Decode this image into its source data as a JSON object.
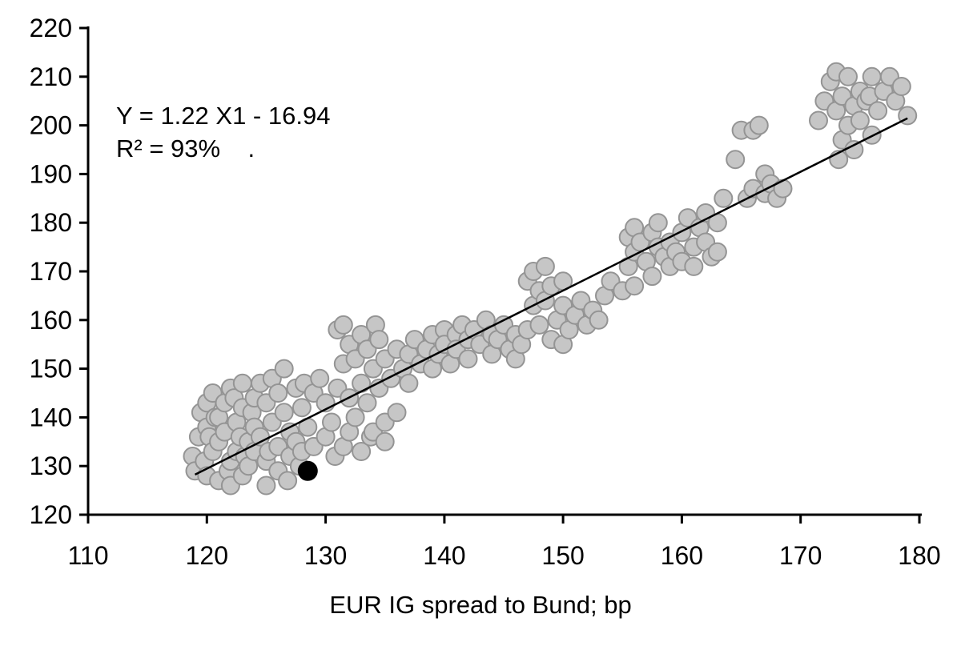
{
  "chart_data": {
    "type": "scatter",
    "title": "",
    "xlabel": "EUR IG spread to Bund; bp",
    "ylabel": "",
    "xlim": [
      110,
      180
    ],
    "ylim": [
      120,
      220
    ],
    "xticks": [
      110,
      120,
      130,
      140,
      150,
      160,
      170,
      180
    ],
    "yticks": [
      120,
      130,
      140,
      150,
      160,
      170,
      180,
      190,
      200,
      210,
      220
    ],
    "grid": false,
    "legend": "none",
    "annotation": {
      "line1": "Y = 1.22 X1 - 16.94",
      "line2": "R² = 93%    ."
    },
    "regression": {
      "slope": 1.22,
      "intercept": -16.94,
      "x_start": 119,
      "x_end": 179,
      "color": "#000000",
      "width": 2.5
    },
    "series": [
      {
        "name": "observations",
        "marker": "circle",
        "fill": "#c6c6c6",
        "stroke": "#949494",
        "radius": 11,
        "points": [
          [
            118.8,
            132
          ],
          [
            119,
            129
          ],
          [
            119.3,
            136
          ],
          [
            119.5,
            141
          ],
          [
            119.8,
            131
          ],
          [
            120,
            138
          ],
          [
            120,
            143
          ],
          [
            120,
            128
          ],
          [
            120.2,
            136
          ],
          [
            120.5,
            133
          ],
          [
            120.5,
            145
          ],
          [
            120.7,
            140
          ],
          [
            121,
            140
          ],
          [
            121,
            135
          ],
          [
            121,
            127
          ],
          [
            121.5,
            143
          ],
          [
            121.5,
            137
          ],
          [
            121.8,
            129
          ],
          [
            122,
            146
          ],
          [
            122,
            131
          ],
          [
            122,
            126
          ],
          [
            122.3,
            144
          ],
          [
            122.5,
            139
          ],
          [
            122.5,
            133
          ],
          [
            122.8,
            136
          ],
          [
            123,
            147
          ],
          [
            123,
            142
          ],
          [
            123,
            128
          ],
          [
            123.2,
            132
          ],
          [
            123.5,
            135
          ],
          [
            123.5,
            130
          ],
          [
            123.8,
            141
          ],
          [
            124,
            144
          ],
          [
            124,
            138
          ],
          [
            124,
            133
          ],
          [
            124.5,
            147
          ],
          [
            124.5,
            136
          ],
          [
            125,
            143
          ],
          [
            125,
            131
          ],
          [
            125,
            126
          ],
          [
            125.2,
            133
          ],
          [
            125.5,
            148
          ],
          [
            125.5,
            139
          ],
          [
            126,
            145
          ],
          [
            126,
            134
          ],
          [
            126,
            129
          ],
          [
            126.5,
            150
          ],
          [
            126.5,
            141
          ],
          [
            126.8,
            127
          ],
          [
            127,
            137
          ],
          [
            127,
            132
          ],
          [
            127.5,
            146
          ],
          [
            127.5,
            135
          ],
          [
            127.8,
            130
          ],
          [
            128,
            142
          ],
          [
            128,
            133
          ],
          [
            128.2,
            147
          ],
          [
            128.5,
            138
          ],
          [
            129,
            145
          ],
          [
            129,
            134
          ],
          [
            129.5,
            148
          ],
          [
            130,
            143
          ],
          [
            130,
            136
          ],
          [
            130.5,
            139
          ],
          [
            130.8,
            132
          ],
          [
            131,
            158
          ],
          [
            131,
            146
          ],
          [
            131.5,
            159
          ],
          [
            131.5,
            151
          ],
          [
            131.5,
            134
          ],
          [
            132,
            155
          ],
          [
            132,
            144
          ],
          [
            132,
            137
          ],
          [
            132.5,
            152
          ],
          [
            132.5,
            140
          ],
          [
            133,
            157
          ],
          [
            133,
            147
          ],
          [
            133,
            133
          ],
          [
            133.5,
            154
          ],
          [
            133.5,
            143
          ],
          [
            133.8,
            136
          ],
          [
            134,
            150
          ],
          [
            134,
            137
          ],
          [
            134.2,
            159
          ],
          [
            134.5,
            156
          ],
          [
            134.5,
            146
          ],
          [
            135,
            152
          ],
          [
            135,
            139
          ],
          [
            135,
            135
          ],
          [
            135.5,
            148
          ],
          [
            136,
            154
          ],
          [
            136,
            141
          ],
          [
            136.5,
            150
          ],
          [
            137,
            153
          ],
          [
            137,
            147
          ],
          [
            137.5,
            156
          ],
          [
            138,
            151
          ],
          [
            138.5,
            154
          ],
          [
            139,
            157
          ],
          [
            139,
            150
          ],
          [
            139.5,
            153
          ],
          [
            140,
            158
          ],
          [
            140,
            155
          ],
          [
            140.5,
            151
          ],
          [
            141,
            157
          ],
          [
            141,
            154
          ],
          [
            141.5,
            159
          ],
          [
            142,
            156
          ],
          [
            142,
            152
          ],
          [
            142.5,
            158
          ],
          [
            143,
            155
          ],
          [
            143.5,
            160
          ],
          [
            144,
            157
          ],
          [
            144,
            153
          ],
          [
            144.5,
            156
          ],
          [
            145,
            159
          ],
          [
            145.5,
            154
          ],
          [
            146,
            157
          ],
          [
            146,
            152
          ],
          [
            146.5,
            155
          ],
          [
            147,
            158
          ],
          [
            147,
            168
          ],
          [
            147.5,
            170
          ],
          [
            147.5,
            163
          ],
          [
            148,
            166
          ],
          [
            148,
            159
          ],
          [
            148.5,
            171
          ],
          [
            148.5,
            164
          ],
          [
            149,
            167
          ],
          [
            149,
            156
          ],
          [
            149.5,
            160
          ],
          [
            150,
            168
          ],
          [
            150,
            163
          ],
          [
            150,
            155
          ],
          [
            150.5,
            158
          ],
          [
            151,
            161
          ],
          [
            151.5,
            164
          ],
          [
            152,
            159
          ],
          [
            152.5,
            162
          ],
          [
            153,
            160
          ],
          [
            153.5,
            165
          ],
          [
            154,
            168
          ],
          [
            155,
            166
          ],
          [
            155.5,
            177
          ],
          [
            155.5,
            171
          ],
          [
            156,
            179
          ],
          [
            156,
            174
          ],
          [
            156,
            167
          ],
          [
            156.5,
            176
          ],
          [
            157,
            172
          ],
          [
            157.5,
            178
          ],
          [
            157.5,
            169
          ],
          [
            158,
            175
          ],
          [
            158,
            180
          ],
          [
            158.5,
            173
          ],
          [
            159,
            176
          ],
          [
            159,
            171
          ],
          [
            159.5,
            174
          ],
          [
            160,
            178
          ],
          [
            160,
            172
          ],
          [
            160.5,
            181
          ],
          [
            161,
            175
          ],
          [
            161,
            171
          ],
          [
            161.5,
            179
          ],
          [
            162,
            176
          ],
          [
            162,
            182
          ],
          [
            162.5,
            173
          ],
          [
            163,
            180
          ],
          [
            163,
            174
          ],
          [
            163.5,
            185
          ],
          [
            164.5,
            193
          ],
          [
            165,
            199
          ],
          [
            165.5,
            185
          ],
          [
            166,
            199
          ],
          [
            166,
            187
          ],
          [
            166.5,
            200
          ],
          [
            167,
            190
          ],
          [
            167,
            186
          ],
          [
            167.5,
            188
          ],
          [
            168,
            185
          ],
          [
            168.5,
            187
          ],
          [
            171.5,
            201
          ],
          [
            172,
            205
          ],
          [
            172.5,
            209
          ],
          [
            173,
            211
          ],
          [
            173,
            203
          ],
          [
            173.2,
            193
          ],
          [
            173.5,
            206
          ],
          [
            173.5,
            197
          ],
          [
            174,
            210
          ],
          [
            174,
            200
          ],
          [
            174.5,
            204
          ],
          [
            174.5,
            195
          ],
          [
            175,
            207
          ],
          [
            175,
            201
          ],
          [
            175.5,
            205
          ],
          [
            175.8,
            206
          ],
          [
            176,
            210
          ],
          [
            176,
            198
          ],
          [
            176.5,
            203
          ],
          [
            177,
            207
          ],
          [
            177.5,
            210
          ],
          [
            178,
            205
          ],
          [
            178.5,
            208
          ],
          [
            179,
            202
          ]
        ]
      },
      {
        "name": "highlighted-point",
        "marker": "circle",
        "fill": "#000000",
        "stroke": "#000000",
        "radius": 12,
        "points": [
          [
            128.5,
            129
          ]
        ]
      }
    ]
  },
  "colors": {
    "axis": "#000000",
    "background": "#ffffff",
    "text": "#000000"
  },
  "layout_text": {
    "x_axis_title": "EUR IG spread to Bund; bp"
  }
}
